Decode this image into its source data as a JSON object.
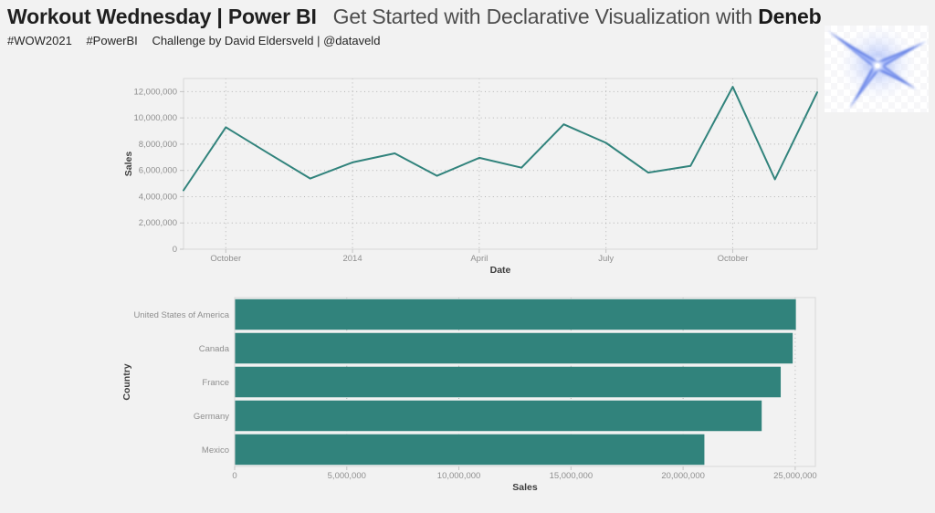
{
  "header": {
    "title": "Workout Wednesday | Power BI",
    "subtitle_prefix": "Get Started with Declarative Visualization with ",
    "subtitle_emphasis": "Deneb",
    "tag1": "#WOW2021",
    "tag2": "#PowerBI",
    "credit": "Challenge by David Eldersveld | @dataveld"
  },
  "logo": {
    "name": "deneb-star-logo"
  },
  "colors": {
    "accent": "#31837c",
    "grid": "#b3b3b3",
    "border": "#d8d8d8",
    "tick": "#c4c4c4",
    "tick_label": "#8f8f8f",
    "axis_title": "#3d3d3d",
    "background": "#f2f2f2",
    "logo_blue": "#4a6be0"
  },
  "chart_data": [
    {
      "type": "line",
      "title": "",
      "xlabel": "Date",
      "ylabel": "Sales",
      "x": [
        "Sep 2013",
        "Oct 2013",
        "Nov 2013",
        "Dec 2013",
        "Jan 2014",
        "Feb 2014",
        "Mar 2014",
        "Apr 2014",
        "May 2014",
        "Jun 2014",
        "Jul 2014",
        "Aug 2014",
        "Sep 2014",
        "Oct 2014",
        "Nov 2014",
        "Dec 2014"
      ],
      "values": [
        4485000,
        9290000,
        7320000,
        5380000,
        6610000,
        7300000,
        5590000,
        6960000,
        6210000,
        9510000,
        8100000,
        5830000,
        6340000,
        12370000,
        5320000,
        11950000
      ],
      "x_ticks": [
        {
          "index": 1,
          "label": "October"
        },
        {
          "index": 4,
          "label": "2014"
        },
        {
          "index": 7,
          "label": "April"
        },
        {
          "index": 10,
          "label": "July"
        },
        {
          "index": 13,
          "label": "October"
        }
      ],
      "y_ticks": [
        {
          "value": 0,
          "label": "0"
        },
        {
          "value": 2000000,
          "label": "2,000,000"
        },
        {
          "value": 4000000,
          "label": "4,000,000"
        },
        {
          "value": 6000000,
          "label": "6,000,000"
        },
        {
          "value": 8000000,
          "label": "8,000,000"
        },
        {
          "value": 10000000,
          "label": "10,000,000"
        },
        {
          "value": 12000000,
          "label": "12,000,000"
        }
      ],
      "ylim": [
        0,
        13000000
      ],
      "grid": "dotted",
      "legend": "none"
    },
    {
      "type": "bar",
      "orientation": "horizontal",
      "title": "",
      "xlabel": "Sales",
      "ylabel": "Country",
      "categories": [
        "United States of America",
        "Canada",
        "France",
        "Germany",
        "Mexico"
      ],
      "values": [
        25029830,
        24887655,
        24354172,
        23505341,
        20949352
      ],
      "x_ticks": [
        {
          "value": 0,
          "label": "0"
        },
        {
          "value": 5000000,
          "label": "5,000,000"
        },
        {
          "value": 10000000,
          "label": "10,000,000"
        },
        {
          "value": 15000000,
          "label": "15,000,000"
        },
        {
          "value": 20000000,
          "label": "20,000,000"
        },
        {
          "value": 25000000,
          "label": "25,000,000"
        }
      ],
      "xlim": [
        0,
        25900000
      ],
      "grid": "dotted",
      "legend": "none"
    }
  ]
}
